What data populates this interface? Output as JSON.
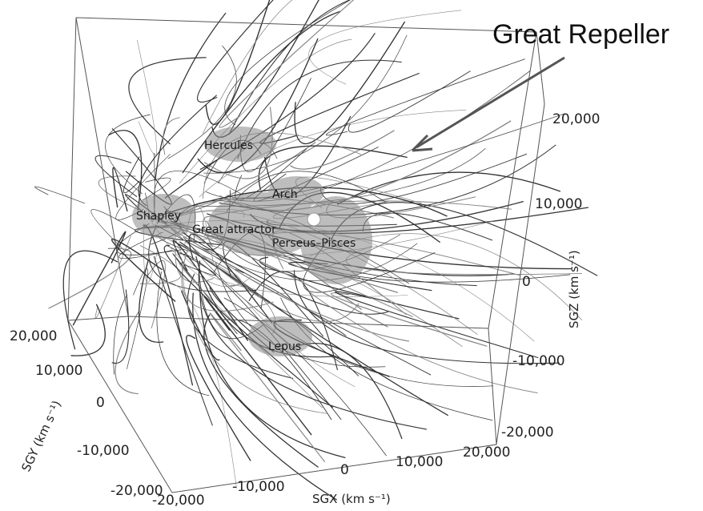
{
  "annotation": "Great Repeller",
  "structures": [
    "Hercules",
    "Arch",
    "Shapley",
    "Great attractor",
    "Perseus–Pisces",
    "Lepus"
  ],
  "axes": {
    "sgz": {
      "title": "SGZ (km s⁻¹)",
      "ticks": [
        "20,000",
        "10,000",
        "0",
        "-10,000",
        "-20,000"
      ]
    },
    "sgy": {
      "title": "SGY (km s⁻¹)",
      "ticks": [
        "20,000",
        "10,000",
        "0",
        "-10,000",
        "-20,000"
      ]
    },
    "sgx": {
      "title": "SGX (km s⁻¹)",
      "ticks": [
        "-20,000",
        "-10,000",
        "0",
        "10,000",
        "20,000"
      ]
    }
  }
}
